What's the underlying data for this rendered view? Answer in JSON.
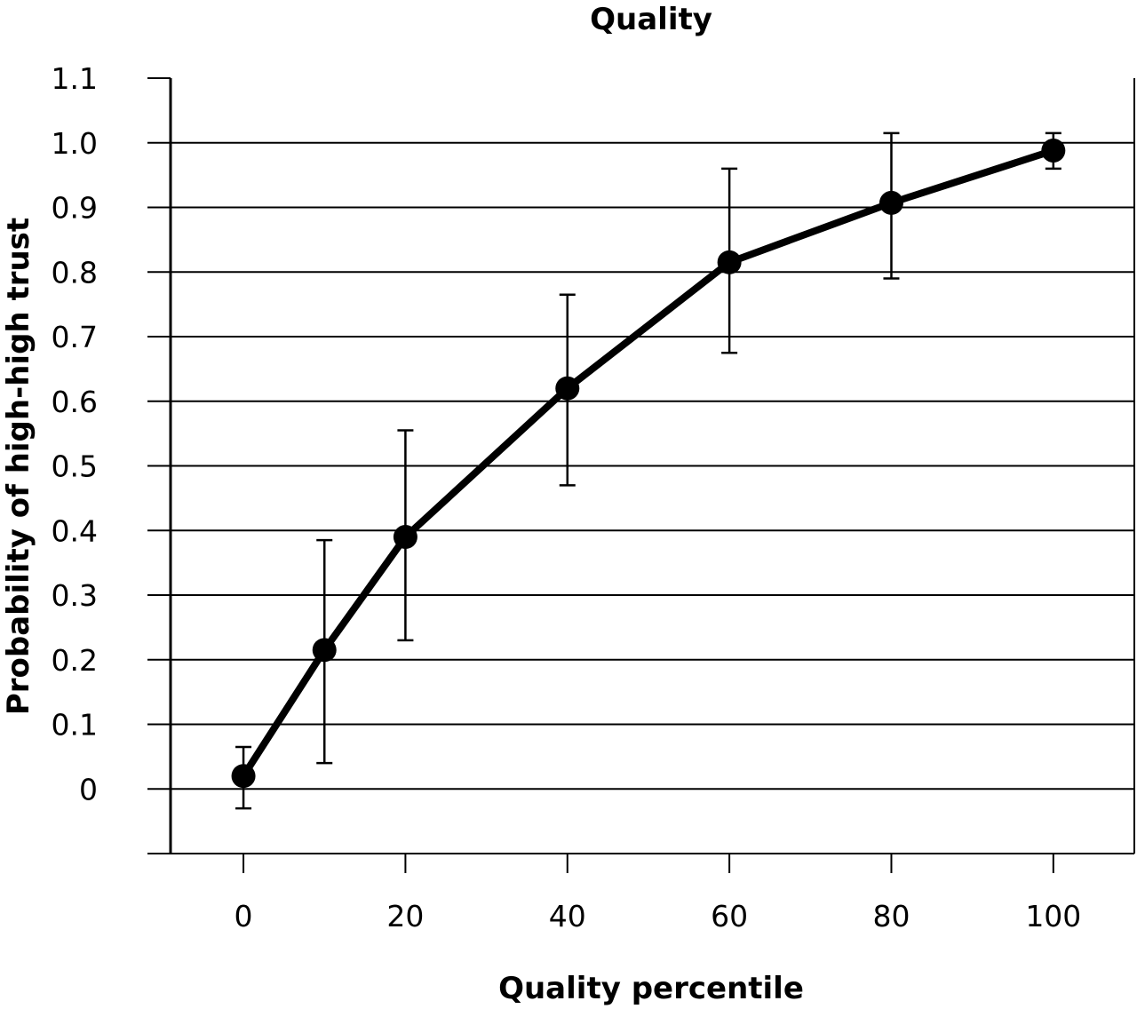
{
  "chart_data": {
    "type": "line",
    "title": "Quality",
    "xlabel": "Quality percentile",
    "ylabel": "Probability of high-high trust",
    "x_ticks": [
      "0",
      "20",
      "40",
      "60",
      "80",
      "100"
    ],
    "y_ticks": [
      "0",
      "0.1",
      "0.2",
      "0.3",
      "0.4",
      "0.5",
      "0.6",
      "0.7",
      "0.8",
      "0.9",
      "1.0",
      "1.1"
    ],
    "xlim": [
      -9,
      110
    ],
    "ylim": [
      -0.1,
      1.1
    ],
    "grid": "horizontal",
    "series": [
      {
        "x": [
          0,
          10,
          20,
          40,
          60,
          80,
          100
        ],
        "y": [
          0.02,
          0.215,
          0.39,
          0.62,
          0.815,
          0.907,
          0.988
        ],
        "error_low": [
          -0.03,
          0.04,
          0.23,
          0.47,
          0.675,
          0.79,
          0.96
        ],
        "error_high": [
          0.065,
          0.385,
          0.555,
          0.765,
          0.96,
          1.015,
          1.015
        ]
      }
    ],
    "colors": {
      "line": "#000000",
      "grid": "#000000",
      "background": "#ffffff"
    }
  }
}
